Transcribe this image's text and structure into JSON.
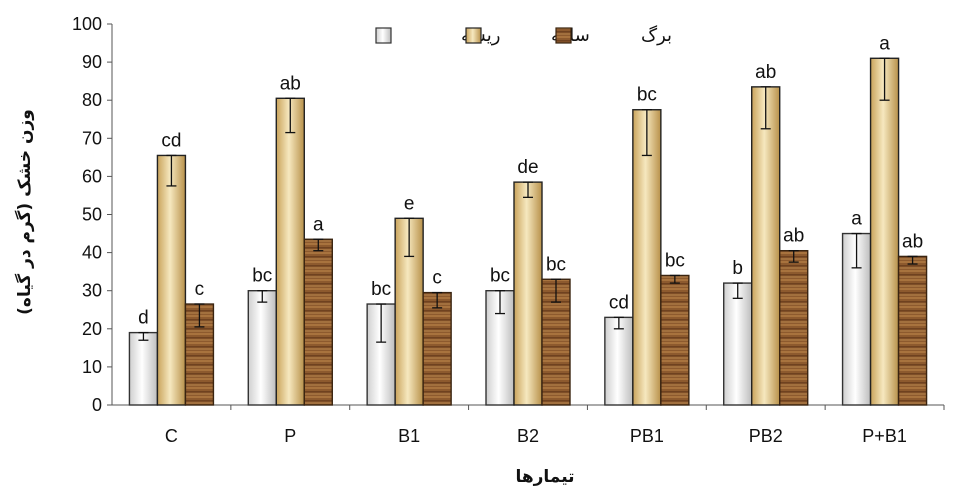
{
  "chart_data": {
    "type": "bar",
    "title": "",
    "xlabel": "تیمارها",
    "ylabel": "وزن خشک (گرم در گیاه)",
    "ylim": [
      0,
      100
    ],
    "yticks": [
      0,
      10,
      20,
      30,
      40,
      50,
      60,
      70,
      80,
      90,
      100
    ],
    "categories": [
      "C",
      "P",
      "B1",
      "B2",
      "PB1",
      "PB2",
      "P+B1"
    ],
    "legend_position": "top-center",
    "grid": false,
    "series": [
      {
        "name": "ریشه",
        "color": "#e8e8e8",
        "values": [
          19,
          30,
          26.5,
          30,
          23,
          32,
          45
        ],
        "errors": [
          2,
          3,
          10,
          6,
          3,
          4,
          9
        ],
        "letters": [
          "d",
          "bc",
          "bc",
          "bc",
          "cd",
          "b",
          "a"
        ]
      },
      {
        "name": "ساقه",
        "color": "#e3c98a",
        "values": [
          65.5,
          80.5,
          49,
          58.5,
          77.5,
          83.5,
          91
        ],
        "errors": [
          8,
          9,
          10,
          4,
          12,
          11,
          11
        ],
        "letters": [
          "cd",
          "ab",
          "e",
          "de",
          "bc",
          "ab",
          "a"
        ]
      },
      {
        "name": "برگ",
        "color": "#8b5a2b",
        "values": [
          26.5,
          43.5,
          29.5,
          33,
          34,
          40.5,
          39
        ],
        "errors": [
          6,
          3,
          4,
          6,
          2,
          3,
          2
        ],
        "letters": [
          "c",
          "a",
          "c",
          "bc",
          "bc",
          "ab",
          "ab"
        ]
      }
    ]
  }
}
